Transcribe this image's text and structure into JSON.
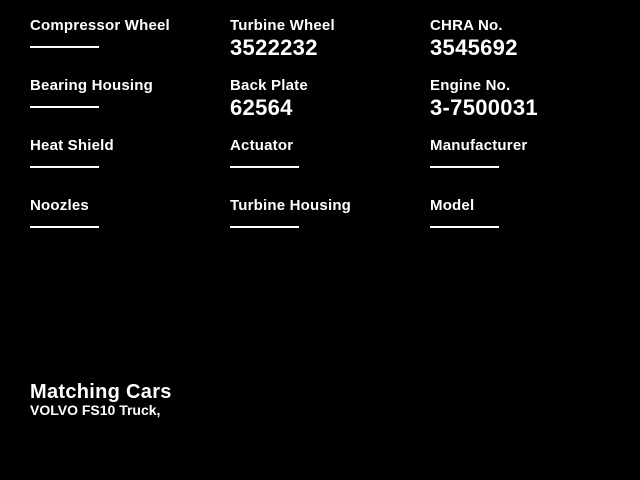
{
  "colors": {
    "background": "#000000",
    "text": "#ffffff"
  },
  "fields": [
    {
      "label": "Compressor Wheel",
      "value": ""
    },
    {
      "label": "Turbine Wheel",
      "value": "3522232"
    },
    {
      "label": "CHRA No.",
      "value": "3545692"
    },
    {
      "label": "Bearing Housing",
      "value": ""
    },
    {
      "label": "Back Plate",
      "value": "62564"
    },
    {
      "label": "Engine No.",
      "value": "3-7500031"
    },
    {
      "label": "Heat Shield",
      "value": ""
    },
    {
      "label": "Actuator",
      "value": ""
    },
    {
      "label": "Manufacturer",
      "value": ""
    },
    {
      "label": "Noozles",
      "value": ""
    },
    {
      "label": "Turbine Housing",
      "value": ""
    },
    {
      "label": "Model",
      "value": ""
    }
  ],
  "matching_cars": {
    "title": "Matching Cars",
    "entries": "VOLVO FS10 Truck,"
  }
}
